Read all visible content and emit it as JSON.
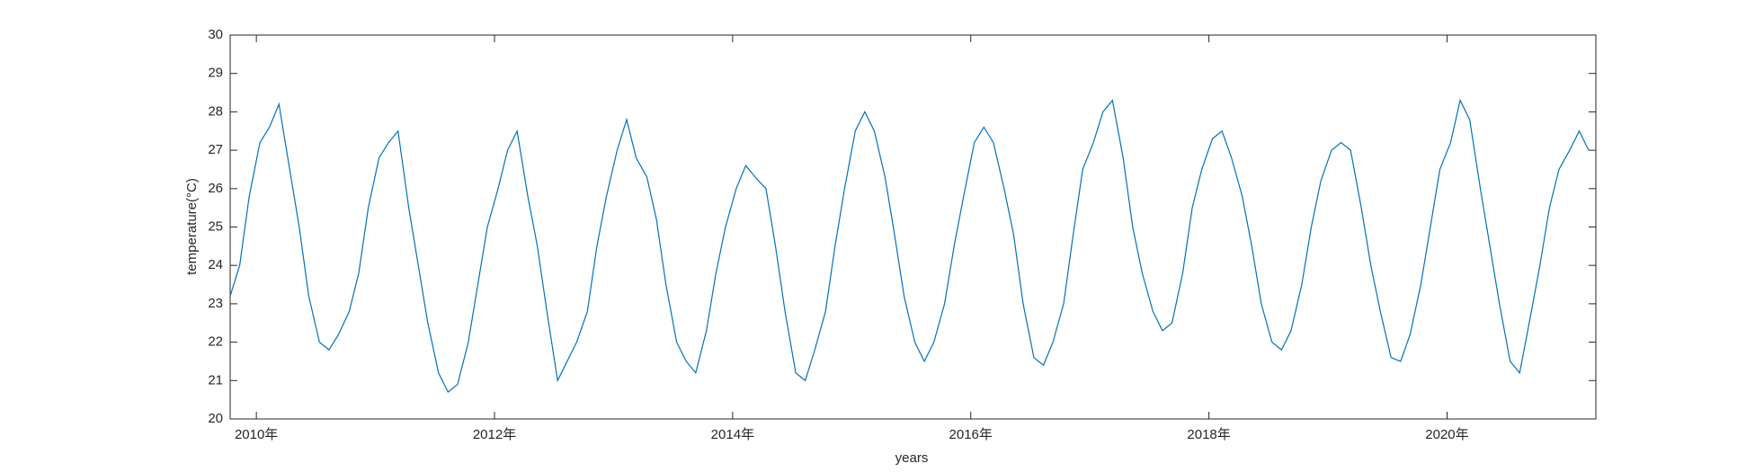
{
  "chart_data": {
    "type": "line",
    "xlabel": "years",
    "ylabel": "temperature(°C)",
    "color": "#0072bd",
    "xlim": [
      2009.78,
      2021.25
    ],
    "ylim": [
      20,
      30
    ],
    "xticks": [
      {
        "value": 2010,
        "label": "2010年"
      },
      {
        "value": 2012,
        "label": "2012年"
      },
      {
        "value": 2014,
        "label": "2014年"
      },
      {
        "value": 2016,
        "label": "2016年"
      },
      {
        "value": 2018,
        "label": "2018年"
      },
      {
        "value": 2020,
        "label": "2020年"
      }
    ],
    "yticks": [
      20,
      21,
      22,
      23,
      24,
      25,
      26,
      27,
      28,
      29,
      30
    ],
    "grid": false,
    "x": [
      2009.78,
      2009.86,
      2009.94,
      2010.03,
      2010.11,
      2010.19,
      2010.28,
      2010.36,
      2010.44,
      2010.53,
      2010.61,
      2010.69,
      2010.78,
      2010.86,
      2010.94,
      2011.03,
      2011.11,
      2011.19,
      2011.28,
      2011.36,
      2011.44,
      2011.53,
      2011.61,
      2011.69,
      2011.78,
      2011.86,
      2011.94,
      2012.03,
      2012.11,
      2012.19,
      2012.28,
      2012.36,
      2012.44,
      2012.53,
      2012.61,
      2012.69,
      2012.78,
      2012.86,
      2012.94,
      2013.03,
      2013.11,
      2013.19,
      2013.28,
      2013.36,
      2013.44,
      2013.53,
      2013.61,
      2013.69,
      2013.78,
      2013.86,
      2013.94,
      2014.03,
      2014.11,
      2014.19,
      2014.28,
      2014.36,
      2014.44,
      2014.53,
      2014.61,
      2014.69,
      2014.78,
      2014.86,
      2014.94,
      2015.03,
      2015.11,
      2015.19,
      2015.28,
      2015.36,
      2015.44,
      2015.53,
      2015.61,
      2015.69,
      2015.78,
      2015.86,
      2015.94,
      2016.03,
      2016.11,
      2016.19,
      2016.28,
      2016.36,
      2016.44,
      2016.53,
      2016.61,
      2016.69,
      2016.78,
      2016.86,
      2016.94,
      2017.03,
      2017.11,
      2017.19,
      2017.28,
      2017.36,
      2017.44,
      2017.53,
      2017.61,
      2017.69,
      2017.78,
      2017.86,
      2017.94,
      2018.03,
      2018.11,
      2018.19,
      2018.28,
      2018.36,
      2018.44,
      2018.53,
      2018.61,
      2018.69,
      2018.78,
      2018.86,
      2018.94,
      2019.03,
      2019.11,
      2019.19,
      2019.28,
      2019.36,
      2019.44,
      2019.53,
      2019.61,
      2019.69,
      2019.78,
      2019.86,
      2019.94,
      2020.03,
      2020.11,
      2020.19,
      2020.28,
      2020.36,
      2020.44,
      2020.53,
      2020.61,
      2020.69,
      2020.78,
      2020.86,
      2020.94,
      2021.03,
      2021.11,
      2021.19
    ],
    "values": [
      23.2,
      24.0,
      25.8,
      27.2,
      27.6,
      28.2,
      26.5,
      25.0,
      23.2,
      22.0,
      21.8,
      22.2,
      22.8,
      23.8,
      25.5,
      26.8,
      27.2,
      27.5,
      25.5,
      24.0,
      22.5,
      21.2,
      20.7,
      20.9,
      22.0,
      23.5,
      25.0,
      26.0,
      27.0,
      27.5,
      25.8,
      24.5,
      22.8,
      21.0,
      21.5,
      22.0,
      22.8,
      24.5,
      25.8,
      27.0,
      27.8,
      26.8,
      26.3,
      25.2,
      23.5,
      22.0,
      21.5,
      21.2,
      22.3,
      23.8,
      25.0,
      26.0,
      26.6,
      26.3,
      26.0,
      24.5,
      22.8,
      21.2,
      21.0,
      21.8,
      22.8,
      24.5,
      26.0,
      27.5,
      28.0,
      27.5,
      26.3,
      24.8,
      23.2,
      22.0,
      21.5,
      22.0,
      23.0,
      24.5,
      25.8,
      27.2,
      27.6,
      27.2,
      26.0,
      24.8,
      23.0,
      21.6,
      21.4,
      22.0,
      23.0,
      24.8,
      26.5,
      27.2,
      28.0,
      28.3,
      26.8,
      25.0,
      23.8,
      22.8,
      22.3,
      22.5,
      23.8,
      25.5,
      26.5,
      27.3,
      27.5,
      26.8,
      25.8,
      24.5,
      23.0,
      22.0,
      21.8,
      22.3,
      23.5,
      25.0,
      26.2,
      27.0,
      27.2,
      27.0,
      25.5,
      24.0,
      22.8,
      21.6,
      21.5,
      22.2,
      23.5,
      25.0,
      26.5,
      27.2,
      28.3,
      27.8,
      26.0,
      24.5,
      23.0,
      21.5,
      21.2,
      22.5,
      24.0,
      25.5,
      26.5,
      27.0,
      27.5,
      27.0
    ]
  }
}
